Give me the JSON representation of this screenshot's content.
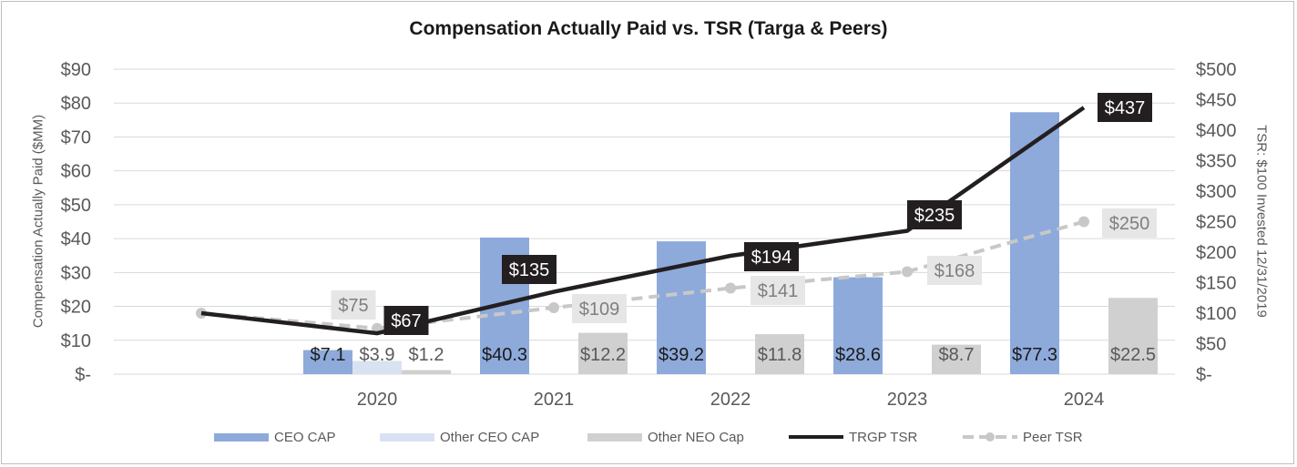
{
  "chart_data": {
    "type": "bar",
    "title": "Compensation Actually Paid vs. TSR (Targa & Peers)",
    "ylabel_left": "Compensation Actually Paid ($MM)",
    "ylabel_right": "TSR: $100 Invested 12/31/2019",
    "categories": [
      "2020",
      "2021",
      "2022",
      "2023",
      "2024"
    ],
    "ylim_left": [
      0,
      90
    ],
    "ylim_right": [
      0,
      500
    ],
    "left_ticks": [
      "$-",
      "$10",
      "$20",
      "$30",
      "$40",
      "$50",
      "$60",
      "$70",
      "$80",
      "$90"
    ],
    "right_ticks": [
      "$-",
      "$50",
      "$100",
      "$150",
      "$200",
      "$250",
      "$300",
      "$350",
      "$400",
      "$450",
      "$500"
    ],
    "bar_series": [
      {
        "name": "CEO CAP",
        "color": "#8eaadb",
        "values": [
          7.1,
          40.3,
          39.2,
          28.6,
          77.3
        ],
        "labels": [
          "$7.1",
          "$40.3",
          "$39.2",
          "$28.6",
          "$77.3"
        ]
      },
      {
        "name": "Other CEO CAP",
        "color": "#d9e2f3",
        "values": [
          3.9,
          null,
          null,
          null,
          null
        ],
        "labels": [
          "$3.9",
          "",
          "",
          "",
          ""
        ]
      },
      {
        "name": "Other NEO Cap",
        "color": "#d0d0d0",
        "values": [
          1.2,
          12.2,
          11.8,
          8.7,
          22.5
        ],
        "labels": [
          "$1.2",
          "$12.2",
          "$11.8",
          "$8.7",
          "$22.5"
        ]
      }
    ],
    "line_series": [
      {
        "name": "TRGP TSR",
        "color": "#231f20",
        "style": "solid",
        "x": [
          "2019",
          "2020",
          "2021",
          "2022",
          "2023",
          "2024"
        ],
        "values": [
          100,
          67,
          135,
          194,
          235,
          437
        ],
        "labels": [
          "",
          "$67",
          "$135",
          "$194",
          "$235",
          "$437"
        ]
      },
      {
        "name": "Peer TSR",
        "color": "#c8c8c8",
        "style": "dashed-marker",
        "x": [
          "2019",
          "2020",
          "2021",
          "2022",
          "2023",
          "2024"
        ],
        "values": [
          100,
          75,
          109,
          141,
          168,
          250
        ],
        "labels": [
          "",
          "$75",
          "$109",
          "$141",
          "$168",
          "$250"
        ]
      }
    ],
    "grid": true,
    "legend": "bottom"
  }
}
